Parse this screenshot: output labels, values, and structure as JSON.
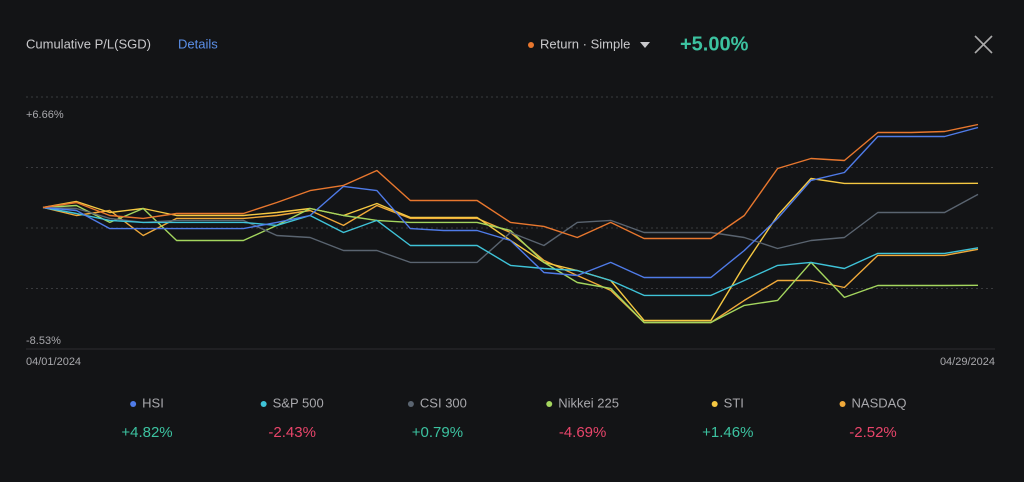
{
  "header": {
    "details": "Details"
  },
  "chart_data": {
    "type": "line",
    "title": "Cumulative P/L(SGD)",
    "categories": [
      "04/01/2024",
      null,
      null,
      null,
      null,
      null,
      null,
      null,
      null,
      null,
      null,
      null,
      null,
      null,
      null,
      null,
      null,
      null,
      null,
      null,
      null,
      null,
      null,
      null,
      null,
      null,
      null,
      null,
      "04/29/2024"
    ],
    "ylim": [
      -8.53,
      6.66
    ],
    "yticks": [
      {
        "value": 6.66,
        "label": "+6.66%"
      },
      {
        "value": -8.53,
        "label": "-8.53%"
      }
    ],
    "grid": true,
    "series": [
      {
        "name": "Return · Simple",
        "color": "#e8772e",
        "last_label": "+5.00%",
        "values": [
          0,
          0.3,
          -0.48,
          -0.66,
          -0.36,
          -0.36,
          -0.36,
          0.3,
          1.02,
          1.33,
          2.23,
          0.42,
          0.42,
          0.42,
          -0.9,
          -1.14,
          -1.81,
          -0.9,
          -1.87,
          -1.87,
          -1.87,
          -0.48,
          2.35,
          2.95,
          2.83,
          4.52,
          4.52,
          4.58,
          5.0
        ]
      },
      {
        "name": "HSI",
        "color": "#4f7be8",
        "last_label": "+4.82%",
        "values": [
          0,
          -0.18,
          -1.27,
          -1.27,
          -1.27,
          -1.27,
          -1.27,
          -0.9,
          -0.48,
          1.27,
          1.02,
          -1.27,
          -1.39,
          -1.39,
          -1.99,
          -3.92,
          -4.1,
          -3.31,
          -4.22,
          -4.22,
          -4.22,
          -2.59,
          -0.66,
          1.63,
          2.11,
          4.28,
          4.28,
          4.28,
          4.82
        ]
      },
      {
        "name": "S&P 500",
        "color": "#3fc3d8",
        "last_label": "-2.43%",
        "values": [
          0,
          -0.36,
          -0.78,
          -0.9,
          -0.9,
          -0.9,
          -0.9,
          -1.08,
          -0.48,
          -1.51,
          -0.78,
          -2.29,
          -2.29,
          -2.29,
          -3.49,
          -3.68,
          -3.8,
          -4.4,
          -5.3,
          -5.3,
          -5.3,
          -4.4,
          -3.49,
          -3.31,
          -3.68,
          -2.77,
          -2.77,
          -2.77,
          -2.43
        ]
      },
      {
        "name": "CSI 300",
        "color": "#5a6470",
        "last_label": "+0.79%",
        "values": [
          0,
          -0.06,
          -0.66,
          -0.9,
          -0.78,
          -0.78,
          -0.78,
          -1.69,
          -1.81,
          -2.59,
          -2.59,
          -3.31,
          -3.31,
          -3.31,
          -1.51,
          -2.29,
          -0.9,
          -0.78,
          -1.51,
          -1.51,
          -1.51,
          -1.81,
          -2.47,
          -1.99,
          -1.81,
          -0.3,
          -0.3,
          -0.3,
          0.79
        ]
      },
      {
        "name": "Nikkei 225",
        "color": "#a4d65e",
        "last_label": "-4.69%",
        "values": [
          0,
          0.12,
          -0.9,
          -0.06,
          -1.99,
          -1.99,
          -1.99,
          -1.08,
          -0.06,
          -0.48,
          -0.78,
          -0.9,
          -0.9,
          -0.9,
          -1.39,
          -3.31,
          -4.52,
          -4.88,
          -6.93,
          -6.93,
          -6.93,
          -5.9,
          -5.6,
          -3.31,
          -5.42,
          -4.7,
          -4.7,
          -4.7,
          -4.69
        ]
      },
      {
        "name": "STI",
        "color": "#f5c842",
        "last_label": "+1.46%",
        "values": [
          0,
          0.36,
          -0.3,
          -0.06,
          -0.48,
          -0.48,
          -0.48,
          -0.3,
          -0.06,
          -0.48,
          0.24,
          -0.6,
          -0.6,
          -0.6,
          -1.99,
          -3.31,
          -3.8,
          -4.4,
          -6.81,
          -6.81,
          -6.81,
          -3.49,
          -0.48,
          1.75,
          1.45,
          1.45,
          1.45,
          1.45,
          1.46
        ]
      },
      {
        "name": "NASDAQ",
        "color": "#f0a93a",
        "last_label": "-2.52%",
        "values": [
          0,
          -0.48,
          -0.18,
          -1.69,
          -0.66,
          -0.66,
          -0.66,
          -0.48,
          -0.18,
          -1.08,
          0.12,
          -0.66,
          -0.66,
          -0.66,
          -1.51,
          -3.19,
          -4.1,
          -5.0,
          -6.93,
          -6.93,
          -6.93,
          -5.6,
          -4.4,
          -4.4,
          -4.82,
          -2.89,
          -2.89,
          -2.89,
          -2.52
        ]
      }
    ]
  }
}
